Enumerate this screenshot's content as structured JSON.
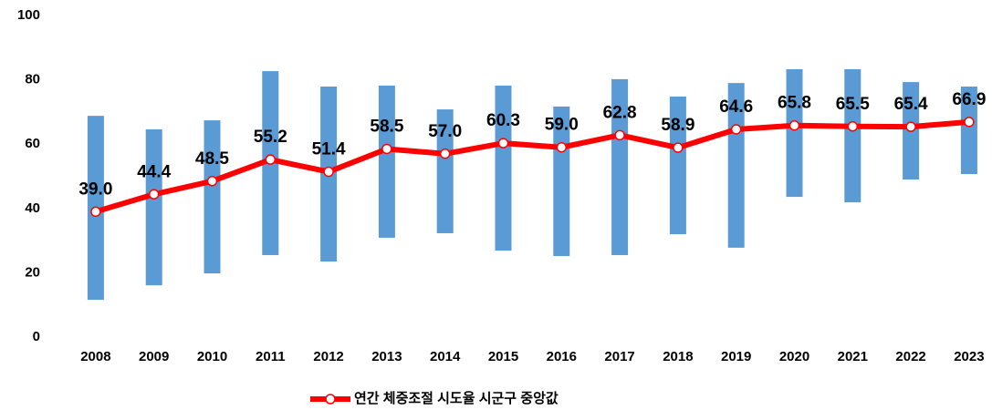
{
  "chart_data": {
    "type": "bar_line",
    "categories": [
      "2008",
      "2009",
      "2010",
      "2011",
      "2012",
      "2013",
      "2014",
      "2015",
      "2016",
      "2017",
      "2018",
      "2019",
      "2020",
      "2021",
      "2022",
      "2023"
    ],
    "bars": {
      "color": "#5b9bd5",
      "low": [
        11.6,
        16.1,
        19.8,
        25.5,
        23.5,
        30.9,
        32.3,
        26.9,
        25.2,
        25.5,
        32.0,
        27.8,
        43.6,
        41.9,
        49.0,
        50.7
      ],
      "high": [
        68.8,
        64.6,
        67.4,
        82.7,
        77.9,
        78.2,
        70.8,
        78.2,
        71.7,
        80.2,
        74.8,
        79.0,
        83.3,
        83.3,
        79.3,
        77.9
      ]
    },
    "series": [
      {
        "name": "연간 체중조절 시도율 시군구 중앙값",
        "color": "#ff0000",
        "values": [
          39.0,
          44.4,
          48.5,
          55.2,
          51.4,
          58.5,
          57.0,
          60.3,
          59.0,
          62.8,
          58.9,
          64.6,
          65.8,
          65.5,
          65.4,
          66.9
        ],
        "value_labels": [
          "39.0",
          "44.4",
          "48.5",
          "55.2",
          "51.4",
          "58.5",
          "57.0",
          "60.3",
          "59.0",
          "62.8",
          "58.9",
          "64.6",
          "65.8",
          "65.5",
          "65.4",
          "66.9"
        ]
      }
    ],
    "ylim": [
      0,
      100
    ],
    "yticks": [
      0,
      20,
      40,
      60,
      80,
      100
    ],
    "grid": false,
    "legend": "bottom"
  }
}
